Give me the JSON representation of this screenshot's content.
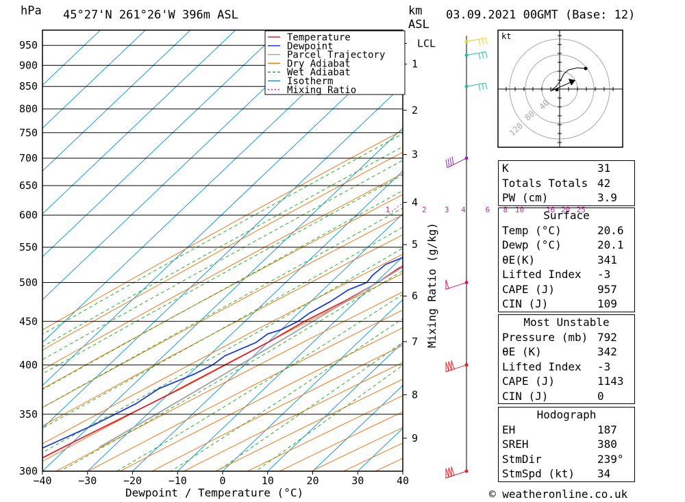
{
  "header": {
    "hpa_label": "hPa",
    "location": "45°27'N  261°26'W  396m  ASL",
    "km_label": "km",
    "asl_label": "ASL",
    "datetime": "03.09.2021  00GMT  (Base: 12)"
  },
  "footer": {
    "x_title": "Dewpoint / Temperature (°C)",
    "mixing_title": "Mixing Ratio (g/kg)",
    "copyright": "© weatheronline.co.uk"
  },
  "chart_data": {
    "type": "line",
    "diagram": "skew-t log-p",
    "title": "45°27'N  261°26'W  396m  ASL",
    "xlabel": "Dewpoint / Temperature (°C)",
    "ylabel": "hPa",
    "xlim": [
      -40,
      40
    ],
    "ylim": [
      990,
      300
    ],
    "pressure_ticks": [
      300,
      350,
      400,
      450,
      500,
      550,
      600,
      650,
      700,
      750,
      800,
      850,
      900,
      950
    ],
    "temperature_ticks": [
      -40,
      -30,
      -20,
      -10,
      0,
      10,
      20,
      30,
      40
    ],
    "km_ticks": [
      {
        "label": "1",
        "p": 903
      },
      {
        "label": "2",
        "p": 797
      },
      {
        "label": "3",
        "p": 707
      },
      {
        "label": "4",
        "p": 621
      },
      {
        "label": "5",
        "p": 554
      },
      {
        "label": "6",
        "p": 482
      },
      {
        "label": "7",
        "p": 426
      },
      {
        "label": "8",
        "p": 369
      },
      {
        "label": "9",
        "p": 328
      },
      {
        "label": "LCL",
        "p": 955
      }
    ],
    "mixing_ratio_labels": [
      "1",
      "2",
      "3",
      "4",
      "6",
      "8",
      "10",
      "16",
      "20",
      "25"
    ],
    "legend": [
      {
        "name": "Temperature",
        "color": "#e8202a"
      },
      {
        "name": "Dewpoint",
        "color": "#1c3cd8"
      },
      {
        "name": "Parcel Trajectory",
        "color": "#a8a8a8"
      },
      {
        "name": "Dry Adiabat",
        "color": "#f07818"
      },
      {
        "name": "Wet Adiabat",
        "color": "#22b024"
      },
      {
        "name": "Isotherm",
        "color": "#1898e0"
      },
      {
        "name": "Mixing Ratio",
        "color": "#d020a0"
      }
    ],
    "legend_position": "top-right",
    "series": [
      {
        "name": "Temperature",
        "color": "#e8202a",
        "points": [
          [
            980,
            20.6
          ],
          [
            950,
            21.5
          ],
          [
            925,
            20.5
          ],
          [
            900,
            19.8
          ],
          [
            850,
            16.8
          ],
          [
            800,
            13.6
          ],
          [
            775,
            12.2
          ],
          [
            750,
            9.4
          ],
          [
            700,
            6.2
          ],
          [
            675,
            4.9
          ],
          [
            650,
            2.0
          ],
          [
            625,
            0.2
          ],
          [
            600,
            -2.4
          ],
          [
            575,
            -3.6
          ],
          [
            550,
            -6.0
          ],
          [
            540,
            -4.8
          ],
          [
            520,
            -8.2
          ],
          [
            500,
            -9.6
          ],
          [
            475,
            -12.6
          ],
          [
            450,
            -16.8
          ],
          [
            425,
            -20.0
          ],
          [
            400,
            -24.2
          ],
          [
            375,
            -28.6
          ],
          [
            350,
            -34.0
          ],
          [
            325,
            -39.8
          ],
          [
            300,
            -45.8
          ]
        ]
      },
      {
        "name": "Dewpoint",
        "color": "#1c3cd8",
        "points": [
          [
            980,
            20.1
          ],
          [
            950,
            15.0
          ],
          [
            925,
            14.5
          ],
          [
            900,
            10.0
          ],
          [
            875,
            8.8
          ],
          [
            850,
            4.0
          ],
          [
            825,
            7.0
          ],
          [
            815,
            9.0
          ],
          [
            800,
            9.8
          ],
          [
            775,
            8.2
          ],
          [
            750,
            6.0
          ],
          [
            725,
            3.6
          ],
          [
            700,
            1.8
          ],
          [
            690,
            1.0
          ],
          [
            675,
            1.6
          ],
          [
            660,
            -0.2
          ],
          [
            650,
            -1.8
          ],
          [
            640,
            -2.2
          ],
          [
            625,
            -4.4
          ],
          [
            600,
            -7.0
          ],
          [
            575,
            -8.2
          ],
          [
            555,
            -9.8
          ],
          [
            545,
            -10.0
          ],
          [
            535,
            -9.8
          ],
          [
            525,
            -12.0
          ],
          [
            510,
            -12.4
          ],
          [
            500,
            -12.0
          ],
          [
            490,
            -14.4
          ],
          [
            475,
            -15.6
          ],
          [
            460,
            -17.6
          ],
          [
            450,
            -18.2
          ],
          [
            440,
            -20.0
          ],
          [
            435,
            -22.0
          ],
          [
            425,
            -22.6
          ],
          [
            410,
            -26.4
          ],
          [
            400,
            -27.0
          ],
          [
            390,
            -29.0
          ],
          [
            375,
            -33.4
          ],
          [
            360,
            -35.0
          ],
          [
            340,
            -39.4
          ],
          [
            320,
            -45.2
          ],
          [
            305,
            -55.0
          ],
          [
            300,
            -57.0
          ]
        ]
      },
      {
        "name": "Parcel Trajectory",
        "color": "#a8a8a8",
        "points": [
          [
            980,
            20.6
          ],
          [
            955,
            19.9
          ],
          [
            900,
            17.4
          ],
          [
            850,
            15.0
          ],
          [
            800,
            12.3
          ],
          [
            750,
            9.4
          ],
          [
            700,
            6.3
          ],
          [
            650,
            2.9
          ],
          [
            600,
            -0.8
          ],
          [
            550,
            -5.0
          ],
          [
            500,
            -9.6
          ],
          [
            450,
            -14.9
          ],
          [
            400,
            -20.9
          ],
          [
            350,
            -28.0
          ],
          [
            320,
            -33.0
          ]
        ]
      }
    ],
    "wind_barbs": [
      {
        "p": 300,
        "color": "#e8202a"
      },
      {
        "p": 400,
        "color": "#e8202a"
      },
      {
        "p": 500,
        "color": "#e0106c"
      },
      {
        "p": 700,
        "color": "#9020c0"
      },
      {
        "p": 850,
        "color": "#20c0a0"
      },
      {
        "p": 925,
        "color": "#20c0a0"
      },
      {
        "p": 960,
        "color": "#e8d020"
      }
    ],
    "hodograph": {
      "unit_label": "kt",
      "ring_labels": [
        "40",
        "80",
        "120"
      ]
    }
  },
  "indices": {
    "general": [
      {
        "key": "K",
        "value": "31"
      },
      {
        "key": "Totals Totals",
        "value": "42"
      },
      {
        "key": "PW (cm)",
        "value": "3.9"
      }
    ],
    "surface": {
      "title": "Surface",
      "rows": [
        {
          "key": "Temp (°C)",
          "value": "20.6"
        },
        {
          "key": "Dewp (°C)",
          "value": "20.1"
        },
        {
          "key": "θE(K)",
          "value": "341"
        },
        {
          "key": "Lifted Index",
          "value": "-3"
        },
        {
          "key": "CAPE (J)",
          "value": "957"
        },
        {
          "key": "CIN (J)",
          "value": "109"
        }
      ]
    },
    "most_unstable": {
      "title": "Most Unstable",
      "rows": [
        {
          "key": "Pressure (mb)",
          "value": "792"
        },
        {
          "key": "θE (K)",
          "value": "342"
        },
        {
          "key": "Lifted Index",
          "value": "-3"
        },
        {
          "key": "CAPE (J)",
          "value": "1143"
        },
        {
          "key": "CIN (J)",
          "value": "0"
        }
      ]
    },
    "hodograph": {
      "title": "Hodograph",
      "rows": [
        {
          "key": "EH",
          "value": "187"
        },
        {
          "key": "SREH",
          "value": "380"
        },
        {
          "key": "StmDir",
          "value": "239°"
        },
        {
          "key": "StmSpd (kt)",
          "value": "34"
        }
      ]
    }
  }
}
